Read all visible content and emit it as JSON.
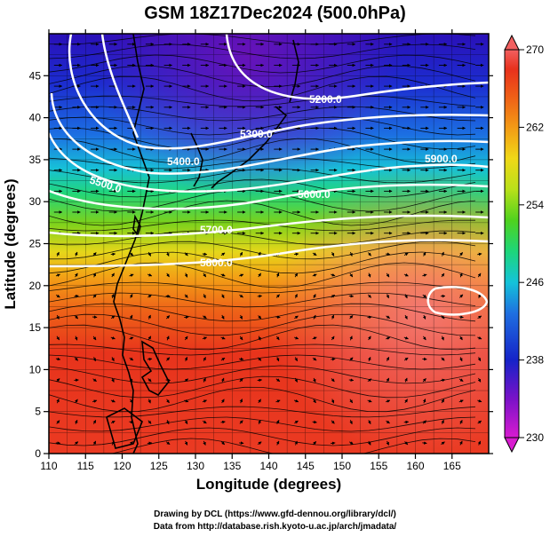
{
  "title": "GSM 18Z17Dec2024 (500.0hPa)",
  "map": {
    "xlabel": "Longitude (degrees)",
    "ylabel": "Latitude  (degrees)",
    "x_ticks": [
      "110",
      "115",
      "120",
      "125",
      "130",
      "135",
      "140",
      "145",
      "150",
      "155",
      "160",
      "165"
    ],
    "y_ticks": [
      "0",
      "5",
      "10",
      "15",
      "20",
      "25",
      "30",
      "35",
      "40",
      "45"
    ],
    "lon_range": [
      110,
      170
    ],
    "lat_range": [
      0,
      50
    ],
    "contour_labels": [
      "5200.0",
      "5300.0",
      "5400.0",
      "5500.0",
      "5600.0",
      "5700.0",
      "5800.0",
      "5900.0"
    ]
  },
  "colorbar": {
    "labels": [
      "230",
      "238",
      "246",
      "254",
      "262",
      "270"
    ],
    "range": [
      230,
      270
    ],
    "colors": [
      "#d81bd0",
      "#7a12c8",
      "#1523c8",
      "#1f6fe0",
      "#14c3d9",
      "#1dd67a",
      "#4fd21e",
      "#b9e01a",
      "#f0d817",
      "#f39a16",
      "#ef5e17",
      "#e8311c",
      "#f26060"
    ]
  },
  "credits": {
    "line1": "Drawing by DCL (https://www.gfd-dennou.org/library/dcl/)",
    "line2": "Data from http://database.rish.kyoto-u.ac.jp/arch/jmadata/"
  }
}
